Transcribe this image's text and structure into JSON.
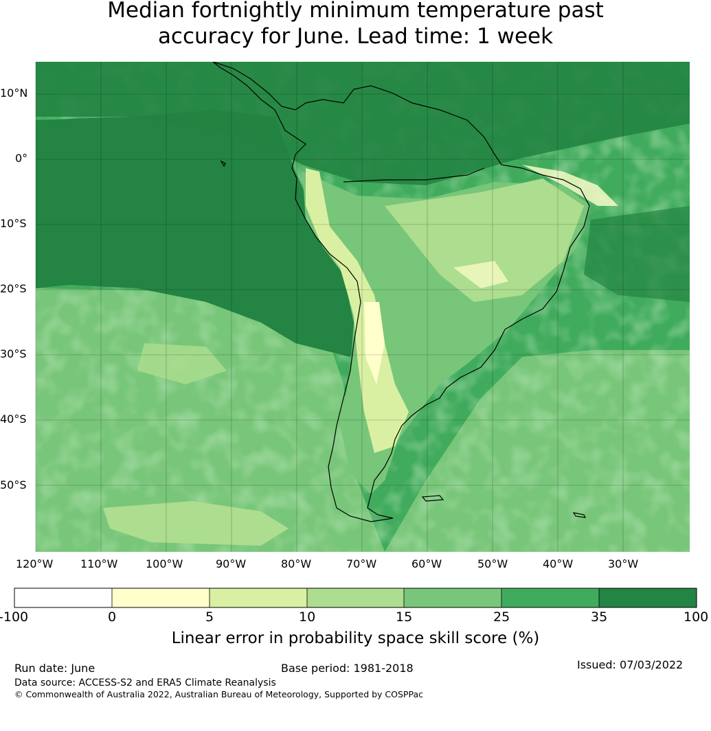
{
  "title_line1": "Median fortnightly minimum temperature past",
  "title_line2": "accuracy for June. Lead time: 1 week",
  "lat_labels": [
    "10°N",
    "0°",
    "10°S",
    "20°S",
    "30°S",
    "40°S",
    "50°S"
  ],
  "lon_labels": [
    "120°W",
    "110°W",
    "100°W",
    "90°W",
    "80°W",
    "70°W",
    "60°W",
    "50°W",
    "40°W",
    "30°W"
  ],
  "colorbar": {
    "ticks": [
      "-100",
      "0",
      "5",
      "10",
      "15",
      "25",
      "35",
      "100"
    ],
    "colors": [
      "#ffffff",
      "#ffffcc",
      "#d9f0a3",
      "#addd8e",
      "#78c679",
      "#41ab5d",
      "#238443"
    ],
    "title": "Linear error in probability space skill score (%)"
  },
  "footer": {
    "run_date": "Run date: June",
    "base_period": "Base period: 1981-2018",
    "issued": "Issued: 07/03/2022",
    "data_source": "Data source: ACCESS-S2 and ERA5 Climate Reanalysis",
    "copyright": "© Commonwealth of Australia 2022, Australian Bureau of Meteorology, Supported by COSPPac"
  }
}
